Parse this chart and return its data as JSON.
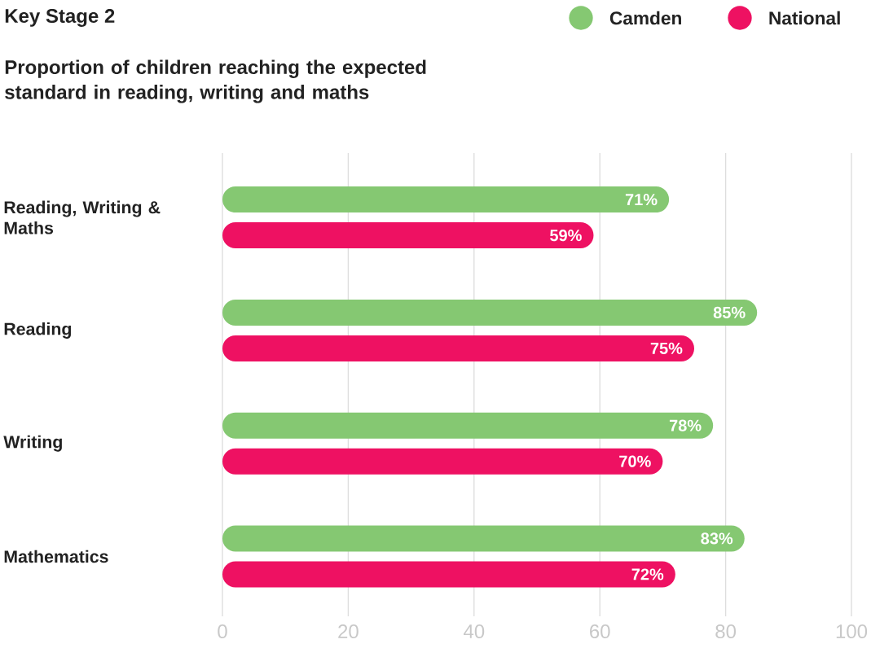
{
  "chart_data": {
    "type": "bar",
    "orientation": "horizontal",
    "title": "Key Stage 2",
    "subtitle": "Proportion of children reaching the expected standard in reading, writing and maths",
    "categories": [
      "Reading, Writing & Maths",
      "Reading",
      "Writing",
      "Mathematics"
    ],
    "series": [
      {
        "name": "Camden",
        "color": "#85c872",
        "values": [
          71,
          85,
          78,
          83
        ],
        "value_labels": [
          "71%",
          "85%",
          "78%",
          "83%"
        ]
      },
      {
        "name": "National",
        "color": "#ee1162",
        "values": [
          59,
          75,
          70,
          72
        ],
        "value_labels": [
          "59%",
          "75%",
          "70%",
          "72%"
        ]
      }
    ],
    "xlim": [
      0,
      100
    ],
    "xticks": [
      0,
      20,
      40,
      60,
      80,
      100
    ],
    "grid": "x",
    "legend": "top right"
  }
}
